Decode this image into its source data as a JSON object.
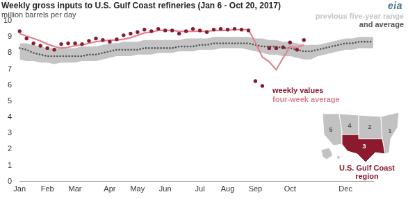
{
  "chart_data": {
    "type": "line",
    "title": "Weekly gross inputs to U.S. Gulf Coast refineries (Jan 6 - Oct 20, 2017)",
    "subtitle": "million barrels per day",
    "logo": "eia",
    "categories": [
      "Jan",
      null,
      null,
      null,
      "Feb",
      null,
      null,
      null,
      "Mar",
      null,
      null,
      null,
      null,
      "Apr",
      null,
      null,
      null,
      "May",
      null,
      null,
      null,
      "Jun",
      null,
      null,
      null,
      null,
      "Jul",
      null,
      null,
      null,
      "Aug",
      null,
      null,
      null,
      "Sep",
      null,
      null,
      null,
      null,
      "Oct",
      null,
      null,
      null,
      null,
      null,
      null,
      null,
      "Dec",
      null,
      null,
      null,
      null
    ],
    "ylim": [
      0,
      10
    ],
    "yticks": [
      0,
      1,
      2,
      3,
      4,
      5,
      6,
      7,
      8,
      9,
      10
    ],
    "grid": false,
    "series": [
      {
        "name": "weekly values",
        "type": "scatter",
        "marker": "circle",
        "color": "#8b1a2e",
        "values": [
          9.35,
          8.9,
          8.6,
          8.45,
          8.3,
          8.2,
          8.55,
          8.6,
          8.6,
          8.55,
          8.75,
          8.9,
          8.8,
          8.7,
          8.85,
          9.1,
          9.2,
          9.3,
          9.45,
          9.35,
          9.5,
          9.4,
          9.4,
          9.2,
          9.35,
          9.5,
          9.4,
          9.3,
          9.45,
          9.5,
          9.45,
          9.5,
          9.45,
          9.4,
          6.25,
          5.95,
          8.3,
          8.3,
          8.35,
          8.65,
          8.2,
          8.8,
          null,
          null,
          null,
          null,
          null,
          null,
          null,
          null,
          null,
          null
        ]
      },
      {
        "name": "four-week average",
        "type": "line",
        "line_style": "solid",
        "color": "#e2838f",
        "values": [
          9.2,
          9.05,
          8.9,
          8.75,
          8.55,
          8.4,
          8.3,
          8.35,
          8.45,
          8.5,
          8.6,
          8.7,
          8.75,
          8.8,
          8.8,
          8.85,
          8.95,
          9.1,
          9.25,
          9.3,
          9.4,
          9.4,
          9.4,
          9.35,
          9.35,
          9.35,
          9.35,
          9.35,
          9.4,
          9.4,
          9.4,
          9.45,
          9.45,
          9.45,
          8.65,
          7.75,
          7.45,
          6.95,
          7.7,
          8.4,
          8.35,
          8.5,
          null,
          null,
          null,
          null,
          null,
          null,
          null,
          null,
          null,
          null
        ]
      },
      {
        "name": "previous five-year range",
        "type": "range",
        "color": "#c4c4c4",
        "low": [
          7.6,
          7.5,
          7.5,
          7.4,
          7.4,
          7.3,
          7.4,
          7.4,
          7.4,
          7.5,
          7.5,
          7.5,
          7.6,
          7.7,
          7.8,
          7.8,
          7.8,
          7.9,
          7.9,
          7.9,
          8.0,
          8.0,
          8.0,
          8.1,
          8.1,
          8.1,
          8.2,
          8.2,
          8.2,
          8.3,
          8.3,
          8.3,
          8.3,
          8.2,
          8.1,
          8.0,
          7.9,
          7.9,
          7.8,
          7.8,
          7.7,
          7.6,
          7.6,
          7.8,
          7.9,
          8.0,
          8.1,
          8.2,
          8.2,
          8.3,
          8.3,
          8.3
        ],
        "high": [
          8.6,
          8.6,
          8.5,
          8.4,
          8.3,
          8.3,
          8.3,
          8.3,
          8.3,
          8.4,
          8.4,
          8.4,
          8.5,
          8.6,
          8.6,
          8.7,
          8.7,
          8.7,
          8.8,
          8.8,
          8.8,
          8.8,
          8.8,
          8.8,
          8.9,
          8.9,
          8.9,
          8.9,
          9.0,
          9.0,
          9.0,
          9.0,
          9.0,
          9.0,
          8.9,
          8.9,
          8.8,
          8.8,
          8.7,
          8.7,
          8.6,
          8.5,
          8.5,
          8.5,
          8.6,
          8.7,
          8.8,
          8.9,
          8.9,
          9.0,
          9.0,
          9.0
        ]
      },
      {
        "name": "and average",
        "type": "line",
        "line_style": "dotted",
        "color": "#555555",
        "values": [
          8.3,
          8.2,
          8.0,
          7.9,
          7.8,
          7.8,
          7.8,
          7.8,
          7.8,
          7.8,
          7.9,
          7.9,
          8.0,
          8.1,
          8.2,
          8.2,
          8.2,
          8.2,
          8.3,
          8.3,
          8.3,
          8.3,
          8.3,
          8.4,
          8.4,
          8.4,
          8.5,
          8.5,
          8.6,
          8.6,
          8.6,
          8.6,
          8.6,
          8.6,
          8.5,
          8.4,
          8.4,
          8.4,
          8.3,
          8.3,
          8.2,
          8.1,
          8.1,
          8.2,
          8.3,
          8.4,
          8.5,
          8.6,
          8.6,
          8.7,
          8.7,
          8.7
        ]
      }
    ],
    "map": {
      "regions": [
        5,
        4,
        2,
        1,
        3
      ],
      "highlight": 3,
      "caption": "U.S. Gulf Coast region"
    }
  }
}
